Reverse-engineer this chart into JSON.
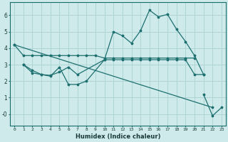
{
  "xlabel": "Humidex (Indice chaleur)",
  "bg_color": "#ceeaea",
  "grid_color": "#afd4d4",
  "line_color": "#1e7070",
  "xlim": [
    -0.5,
    23.5
  ],
  "ylim": [
    -0.7,
    6.8
  ],
  "xticks": [
    0,
    1,
    2,
    3,
    4,
    5,
    6,
    7,
    8,
    9,
    10,
    11,
    12,
    13,
    14,
    15,
    16,
    17,
    18,
    19,
    20,
    21,
    22,
    23
  ],
  "yticks": [
    0,
    1,
    2,
    3,
    4,
    5,
    6
  ],
  "ytick_labels": [
    "-0",
    "1",
    "2",
    "3",
    "4",
    "5",
    "6"
  ],
  "line_segments": [
    {
      "x": [
        0,
        1,
        2,
        3,
        4,
        5,
        6,
        7,
        8,
        9,
        10,
        11,
        12,
        13,
        14,
        15,
        16,
        17,
        18,
        19,
        20
      ],
      "y": [
        4.2,
        3.55,
        3.55,
        3.55,
        3.55,
        3.55,
        3.55,
        3.55,
        3.55,
        3.55,
        3.4,
        3.4,
        3.4,
        3.4,
        3.4,
        3.4,
        3.4,
        3.4,
        3.4,
        3.4,
        3.4
      ]
    },
    {
      "x": [
        1,
        2,
        3,
        4,
        5,
        6,
        7,
        8,
        10,
        11,
        12,
        13,
        14,
        15,
        16,
        17,
        18,
        19,
        20,
        21
      ],
      "y": [
        3.0,
        2.65,
        2.4,
        2.3,
        2.85,
        1.8,
        1.8,
        2.0,
        3.3,
        3.3,
        3.3,
        3.3,
        3.3,
        3.3,
        3.3,
        3.3,
        3.3,
        3.3,
        2.4,
        2.4
      ]
    },
    {
      "x": [
        1,
        2,
        3,
        4,
        5,
        6,
        7,
        10,
        11,
        12,
        13,
        14,
        15,
        16,
        17,
        18,
        19,
        20,
        21
      ],
      "y": [
        3.0,
        2.5,
        2.4,
        2.35,
        2.55,
        2.85,
        2.4,
        3.3,
        5.0,
        4.75,
        4.3,
        5.05,
        6.3,
        5.9,
        6.05,
        5.15,
        4.4,
        3.55,
        2.4
      ]
    },
    {
      "x": [
        0,
        22
      ],
      "y": [
        4.2,
        0.4
      ]
    },
    {
      "x": [
        21,
        22,
        23
      ],
      "y": [
        1.2,
        -0.1,
        0.4
      ]
    }
  ]
}
